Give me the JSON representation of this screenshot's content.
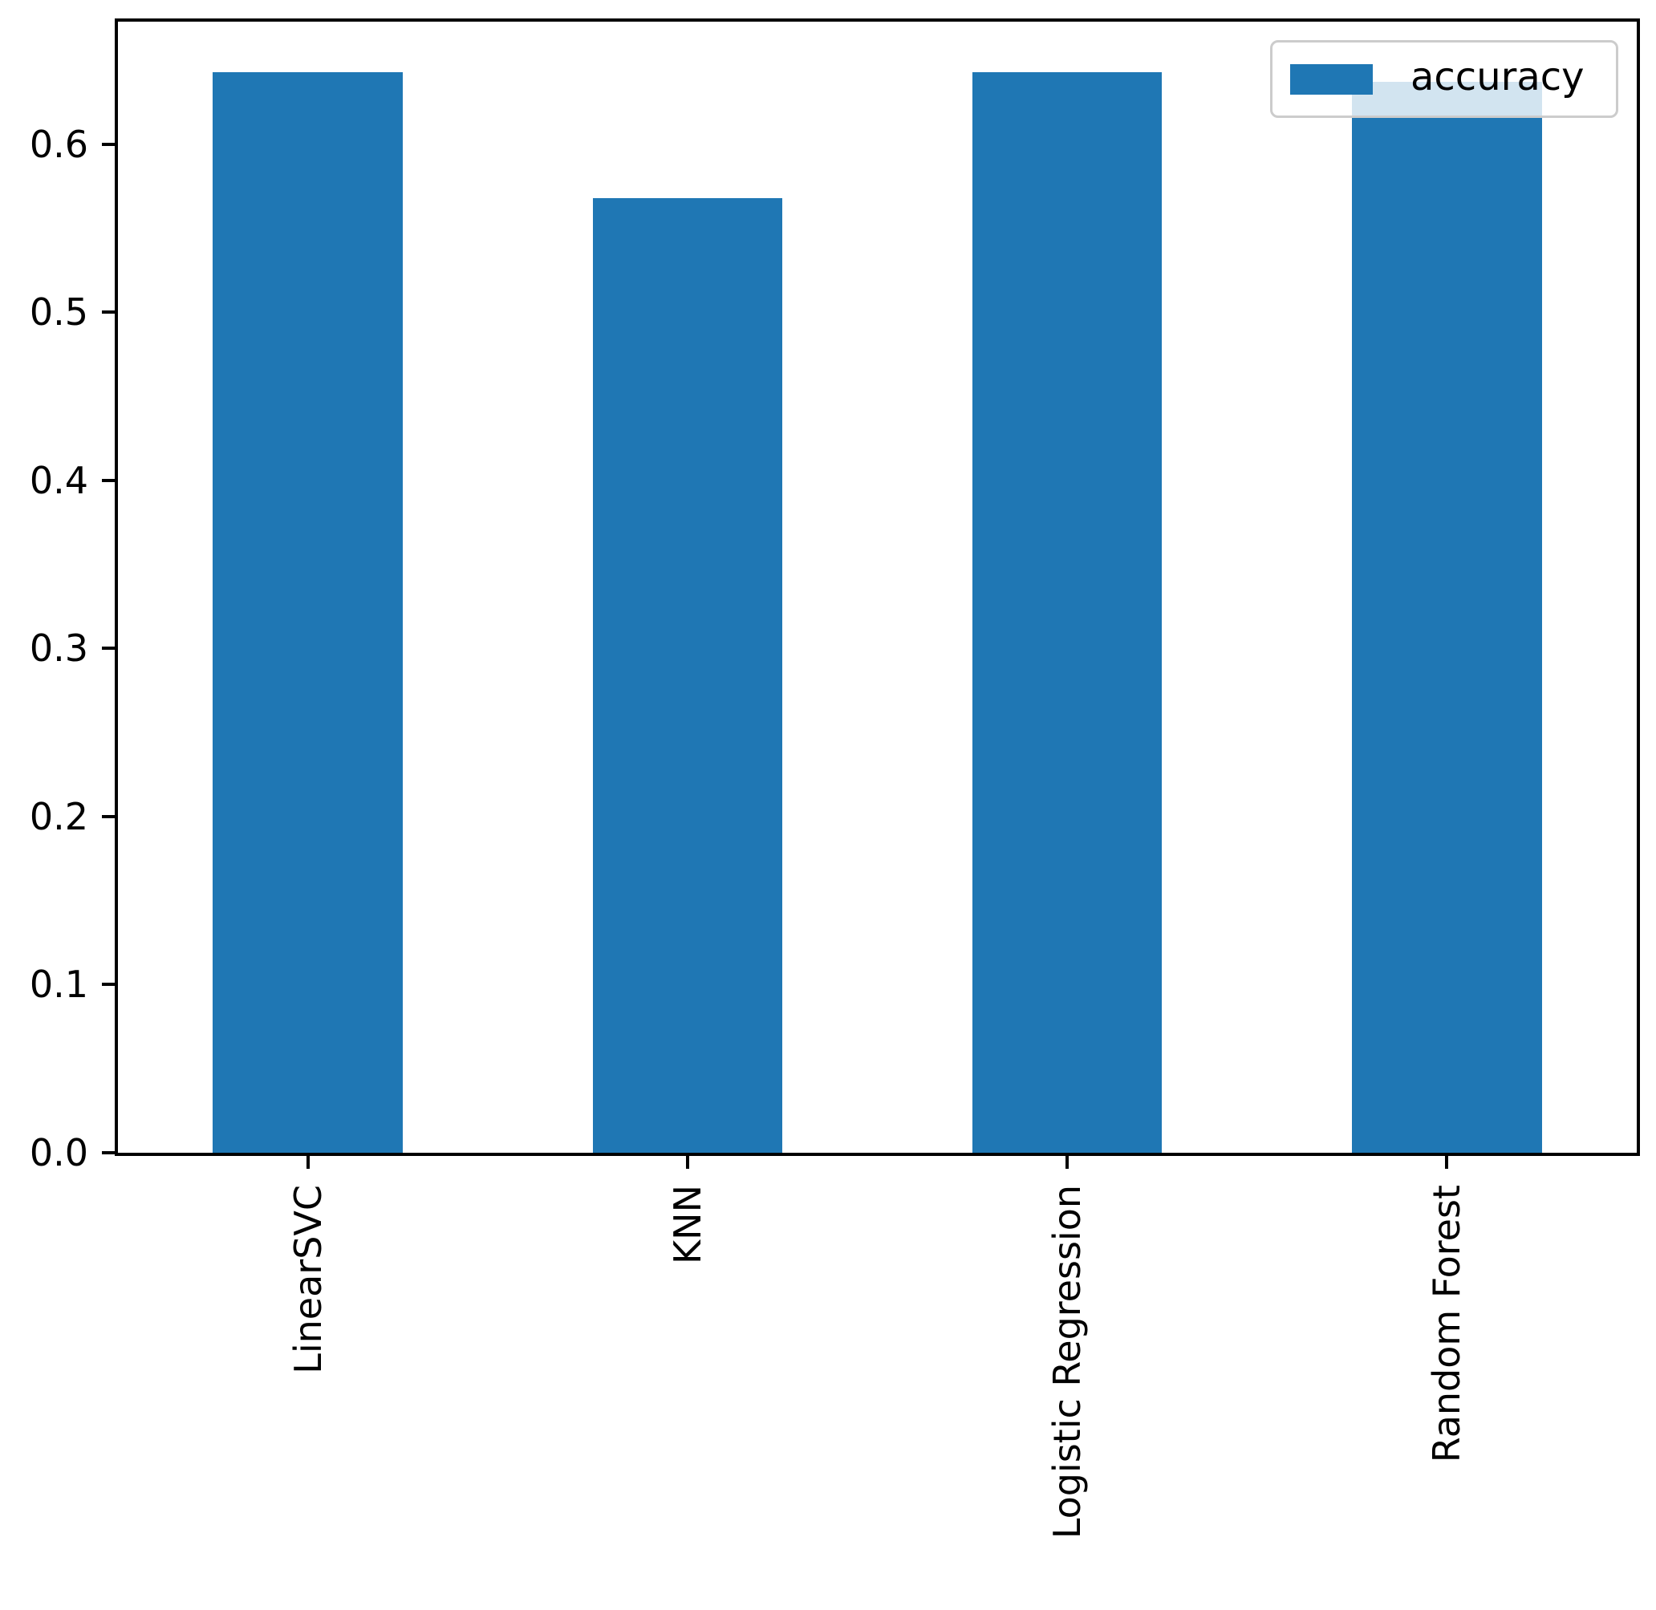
{
  "chart_data": {
    "type": "bar",
    "title": "",
    "xlabel": "",
    "ylabel": "",
    "categories": [
      "LinearSVC",
      "KNN",
      "Logistic Regression",
      "Random Forest"
    ],
    "series": [
      {
        "name": "accuracy",
        "values": [
          0.643,
          0.568,
          0.643,
          0.637
        ]
      }
    ],
    "ylim": [
      0,
      0.673
    ],
    "yticks": [
      "0.0",
      "0.1",
      "0.2",
      "0.3",
      "0.4",
      "0.5",
      "0.6"
    ],
    "grid": false,
    "bar_width_fraction": 0.5,
    "legend": {
      "label": "accuracy",
      "position": "upper-right"
    },
    "colors": {
      "bar": "#1f77b4",
      "spine": "#000000",
      "text": "#000000",
      "legend_border": "#cccccc",
      "legend_background": "rgba(255,255,255,0.8)"
    }
  }
}
